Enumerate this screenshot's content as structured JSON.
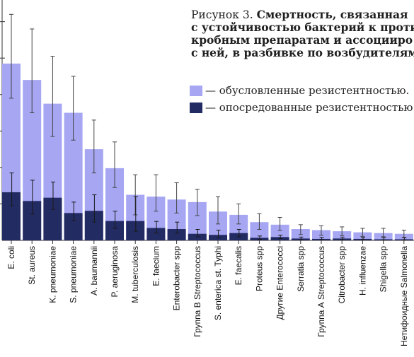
{
  "caption": {
    "fig_label": "Рисунок 3.",
    "lines": [
      "Смертность, связанная",
      "с устойчивостью бактерий к проти",
      "кробным препаратам и ассоцииро",
      "с ней, в разбивке по возбудителям"
    ]
  },
  "legend": {
    "items": [
      {
        "label": "— обусловленные резистентностью.",
        "color": "#a6a6f3"
      },
      {
        "label": "— опосредованные резистентностью",
        "color": "#232b63"
      }
    ]
  },
  "chart_data": {
    "type": "bar",
    "categories": [
      "E. coli",
      "St. aureus",
      "K. pneumoniae",
      "S. pneumoniae",
      "A. baumannii",
      "P. aeruginosa",
      "M. tuberculosis",
      "E. faecium",
      "Enterobacter spp",
      "Группа В Streptococcus",
      "S. enterica st. Typhi",
      "E. faecalis",
      "Proteus spp",
      "Другие Enterococci",
      "Serratia spp",
      "Группа А Streptococcus",
      "Citrobacter spp",
      "H. influenzae",
      "Shigella spp",
      "Нетифоидные Salmonella"
    ],
    "series": [
      {
        "legend_index": 0,
        "values": [
          4.85,
          4.4,
          3.75,
          3.5,
          2.5,
          1.98,
          1.25,
          1.2,
          1.12,
          1.05,
          0.79,
          0.7,
          0.5,
          0.43,
          0.31,
          0.28,
          0.25,
          0.22,
          0.2,
          0.18
        ],
        "error_low": [
          3.9,
          3.5,
          2.85,
          2.75,
          1.85,
          1.45,
          0.7,
          0.8,
          0.75,
          0.68,
          0.45,
          0.45,
          0.3,
          0.27,
          0.16,
          0.14,
          0.13,
          0.11,
          0.1,
          0.08
        ],
        "error_high": [
          6.2,
          5.8,
          5.05,
          4.5,
          3.3,
          2.7,
          1.8,
          1.8,
          1.58,
          1.4,
          1.2,
          1.0,
          0.73,
          0.63,
          0.43,
          0.4,
          0.37,
          0.33,
          0.33,
          0.28
        ]
      },
      {
        "legend_index": 1,
        "values": [
          1.32,
          1.08,
          1.17,
          0.75,
          0.81,
          0.53,
          0.53,
          0.34,
          0.31,
          0.18,
          0.15,
          0.2,
          0.07,
          0.09,
          0.05,
          0.04,
          0.05,
          0.04,
          0.03,
          0.03
        ],
        "error_low": [
          0.95,
          0.72,
          0.85,
          0.55,
          0.5,
          0.33,
          0.25,
          0.2,
          0.2,
          0.1,
          0.08,
          0.1,
          0.03,
          0.05,
          0.02,
          0.02,
          0.02,
          0.02,
          0.01,
          0.01
        ],
        "error_high": [
          1.85,
          1.65,
          1.6,
          1.05,
          1.25,
          0.8,
          1.2,
          0.52,
          0.5,
          0.3,
          0.28,
          0.3,
          0.12,
          0.14,
          0.09,
          0.08,
          0.09,
          0.08,
          0.07,
          0.07
        ]
      }
    ],
    "ylim": [
      0,
      6.4
    ],
    "xlabel": "",
    "ylabel": ""
  }
}
